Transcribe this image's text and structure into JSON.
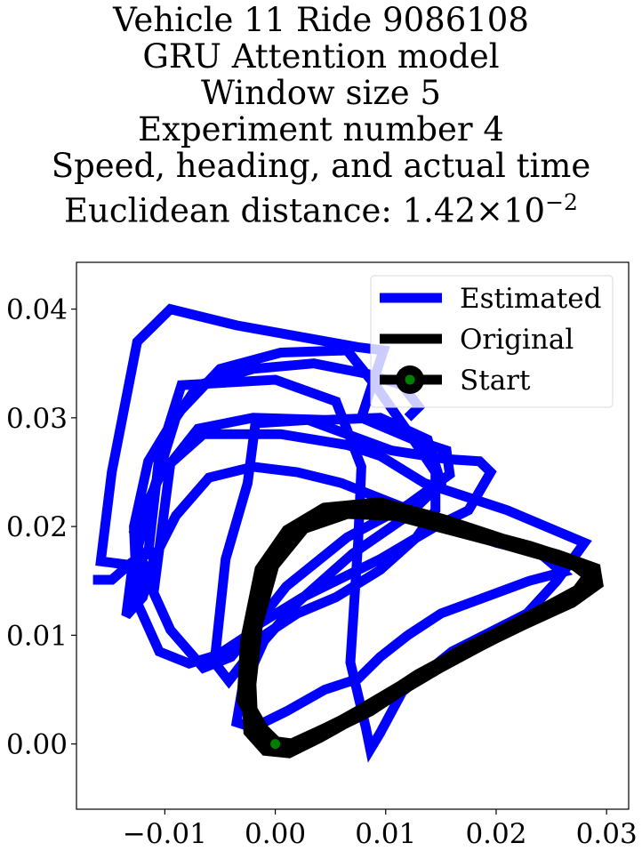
{
  "chart_data": {
    "type": "line",
    "title_lines": [
      "Vehicle 11 Ride 9086108",
      "GRU Attention model",
      "Window size 5",
      "Experiment number 4",
      "Speed, heading, and actual time"
    ],
    "title_metric": {
      "label": "Euclidean distance: 1.42",
      "times": "×",
      "base": "10",
      "exponent": "−2"
    },
    "xlim": [
      -0.018,
      0.032
    ],
    "ylim": [
      -0.006,
      0.0443
    ],
    "x_ticks": [
      -0.01,
      0.0,
      0.01,
      0.02,
      0.03
    ],
    "x_tick_labels": [
      "−0.01",
      "0.00",
      "0.01",
      "0.02",
      "0.03"
    ],
    "y_ticks": [
      0.0,
      0.01,
      0.02,
      0.03,
      0.04
    ],
    "y_tick_labels": [
      "0.00",
      "0.01",
      "0.02",
      "0.03",
      "0.04"
    ],
    "grid": false,
    "legend_position": "top-right",
    "series": [
      {
        "name": "Estimated",
        "color": "#0000ff",
        "points": [
          [
            -0.0165,
            0.0151
          ],
          [
            -0.0148,
            0.0151
          ],
          [
            -0.013,
            0.0167
          ],
          [
            -0.0115,
            0.0175
          ],
          [
            -0.0105,
            0.0265
          ],
          [
            -0.0085,
            0.033
          ],
          [
            0.0,
            0.0335
          ],
          [
            0.0055,
            0.0315
          ],
          [
            0.0078,
            0.0255
          ],
          [
            0.0075,
            0.0185
          ],
          [
            0.0068,
            0.0075
          ],
          [
            0.0082,
            0.0015
          ],
          [
            0.0086,
            -0.0005
          ],
          [
            0.0095,
            0.001
          ],
          [
            0.0115,
            0.0048
          ],
          [
            0.016,
            0.0085
          ],
          [
            0.0228,
            0.012
          ],
          [
            0.0255,
            0.015
          ],
          [
            0.028,
            0.0185
          ],
          [
            0.021,
            0.0215
          ],
          [
            0.0135,
            0.024
          ],
          [
            0.0095,
            0.0265
          ],
          [
            0.0065,
            0.0275
          ],
          [
            0.0005,
            0.0285
          ],
          [
            -0.0065,
            0.0285
          ],
          [
            -0.0095,
            0.0258
          ],
          [
            -0.011,
            0.014
          ],
          [
            -0.0135,
            0.0165
          ],
          [
            -0.0158,
            0.0168
          ],
          [
            -0.0148,
            0.025
          ],
          [
            -0.0125,
            0.037
          ],
          [
            -0.0095,
            0.04
          ],
          [
            -0.0035,
            0.0385
          ],
          [
            0.0075,
            0.0365
          ],
          [
            0.0098,
            0.0362
          ],
          [
            0.0078,
            0.03
          ],
          [
            0.0125,
            0.028
          ],
          [
            0.0155,
            0.027
          ],
          [
            0.0158,
            0.0248
          ],
          [
            0.012,
            0.022
          ],
          [
            0.0065,
            0.019
          ],
          [
            0.001,
            0.0145
          ],
          [
            -0.0025,
            0.01
          ],
          [
            -0.0052,
            0.0082
          ],
          [
            -0.0078,
            0.0074
          ],
          [
            -0.0105,
            0.0085
          ],
          [
            -0.0125,
            0.013
          ],
          [
            -0.0128,
            0.02
          ],
          [
            -0.0115,
            0.026
          ],
          [
            -0.009,
            0.0302
          ],
          [
            -0.005,
            0.0345
          ],
          [
            0.0005,
            0.036
          ],
          [
            0.0065,
            0.0362
          ],
          [
            0.0092,
            0.0328
          ],
          [
            0.0125,
            0.028
          ],
          [
            0.0145,
            0.025
          ],
          [
            0.0145,
            0.0215
          ],
          [
            0.0128,
            0.019
          ],
          [
            0.0095,
            0.016
          ],
          [
            0.0055,
            0.0135
          ],
          [
            0.002,
            0.012
          ],
          [
            -0.001,
            0.01
          ],
          [
            -0.0042,
            0.0058
          ],
          [
            -0.0055,
            0.0075
          ],
          [
            -0.0045,
            0.017
          ],
          [
            -0.0025,
            0.024
          ],
          [
            -0.0018,
            0.0295
          ],
          [
            0.003,
            0.0298
          ],
          [
            0.0105,
            0.027
          ],
          [
            0.0155,
            0.0262
          ],
          [
            0.0185,
            0.026
          ],
          [
            0.0195,
            0.025
          ],
          [
            0.0175,
            0.0215
          ],
          [
            0.0145,
            0.02
          ],
          [
            0.0095,
            0.017
          ],
          [
            0.0025,
            0.0135
          ],
          [
            -0.0015,
            0.011
          ],
          [
            -0.004,
            0.008
          ],
          [
            -0.0065,
            0.007
          ],
          [
            -0.0095,
            0.0105
          ],
          [
            -0.0115,
            0.015
          ],
          [
            -0.0128,
            0.0195
          ],
          [
            -0.0105,
            0.0245
          ],
          [
            -0.007,
            0.029
          ],
          [
            -0.002,
            0.03
          ],
          [
            0.0045,
            0.0298
          ],
          [
            0.0095,
            0.03
          ],
          [
            0.0138,
            0.028
          ],
          [
            0.015,
            0.024
          ],
          [
            0.012,
            0.021
          ],
          [
            0.007,
            0.0175
          ],
          [
            0.002,
            0.013
          ],
          [
            -0.001,
            0.0095
          ],
          [
            -0.003,
            0.005
          ],
          [
            -0.0035,
            0.002
          ],
          [
            -0.002,
            0.0015
          ],
          [
            0.001,
            0.003
          ],
          [
            0.0045,
            0.005
          ],
          [
            0.0075,
            0.006
          ],
          [
            0.0095,
            0.008
          ],
          [
            0.012,
            0.01
          ],
          [
            0.015,
            0.012
          ],
          [
            0.019,
            0.0135
          ],
          [
            0.023,
            0.015
          ],
          [
            0.026,
            0.0158
          ],
          [
            0.024,
            0.0175
          ],
          [
            0.02,
            0.0185
          ],
          [
            0.016,
            0.02
          ],
          [
            0.011,
            0.022
          ],
          [
            0.006,
            0.024
          ],
          [
            0.002,
            0.025
          ],
          [
            -0.002,
            0.0255
          ],
          [
            -0.006,
            0.0245
          ],
          [
            -0.009,
            0.021
          ],
          [
            -0.011,
            0.017
          ],
          [
            -0.012,
            0.0135
          ],
          [
            -0.0135,
            0.0118
          ],
          [
            -0.013,
            0.0158
          ],
          [
            -0.0115,
            0.0218
          ],
          [
            -0.009,
            0.03
          ],
          [
            -0.007,
            0.033
          ],
          [
            -0.002,
            0.0345
          ],
          [
            0.0035,
            0.035
          ],
          [
            0.0085,
            0.034
          ],
          [
            0.0115,
            0.033
          ],
          [
            0.013,
            0.031
          ],
          [
            0.012,
            0.03
          ]
        ]
      },
      {
        "name": "Original",
        "color": "#000000",
        "points": [
          [
            0.0,
            0.0
          ],
          [
            -0.0012,
            0.0012
          ],
          [
            -0.0028,
            0.004
          ],
          [
            -0.0025,
            0.0095
          ],
          [
            -0.0012,
            0.016
          ],
          [
            0.0012,
            0.0195
          ],
          [
            0.0045,
            0.0215
          ],
          [
            0.0095,
            0.022
          ],
          [
            0.015,
            0.0205
          ],
          [
            0.021,
            0.0185
          ],
          [
            0.0255,
            0.0172
          ],
          [
            0.0288,
            0.016
          ],
          [
            0.029,
            0.0148
          ],
          [
            0.0268,
            0.0132
          ],
          [
            0.0225,
            0.0112
          ],
          [
            0.017,
            0.0085
          ],
          [
            0.012,
            0.0055
          ],
          [
            0.0075,
            0.0028
          ],
          [
            0.004,
            0.0008
          ],
          [
            0.0012,
            -0.0006
          ],
          [
            -0.0008,
            -0.0004
          ],
          [
            -0.0022,
            0.0012
          ],
          [
            -0.0024,
            0.0055
          ],
          [
            -0.0018,
            0.011
          ],
          [
            -0.0003,
            0.0165
          ],
          [
            0.0025,
            0.02
          ],
          [
            0.0065,
            0.0214
          ],
          [
            0.011,
            0.0212
          ],
          [
            0.017,
            0.0196
          ],
          [
            0.023,
            0.018
          ],
          [
            0.0272,
            0.0166
          ],
          [
            0.0286,
            0.0155
          ],
          [
            0.0275,
            0.014
          ],
          [
            0.0235,
            0.0118
          ],
          [
            0.0185,
            0.0092
          ],
          [
            0.013,
            0.0062
          ],
          [
            0.0085,
            0.0032
          ],
          [
            0.0045,
            0.0012
          ],
          [
            0.0015,
            -0.0002
          ],
          [
            0.0,
            0.0
          ]
        ]
      }
    ],
    "start_marker": {
      "name": "Start",
      "x": 0.0,
      "y": 0.0,
      "color": "#008000"
    },
    "legend": {
      "entries": [
        "Estimated",
        "Original",
        "Start"
      ]
    }
  }
}
